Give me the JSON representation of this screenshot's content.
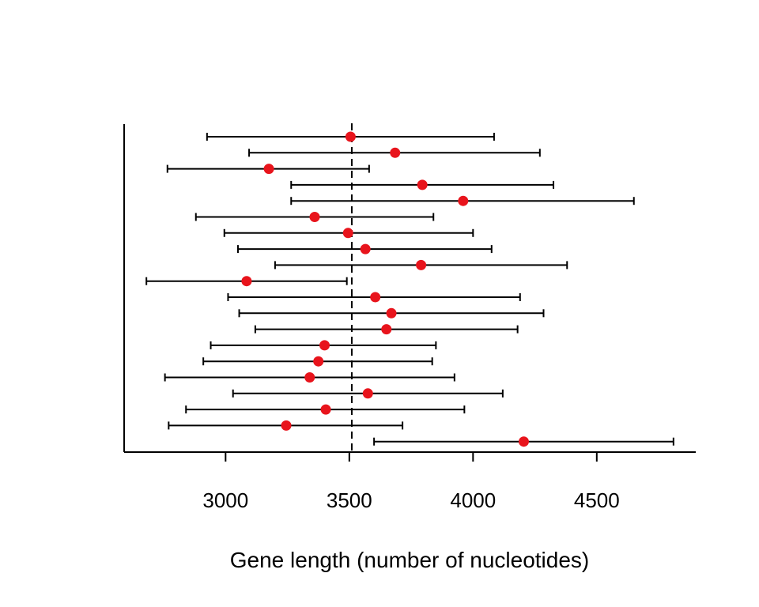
{
  "chart_data": {
    "type": "scatter",
    "title": "",
    "xlabel": "Gene length (number of nucleotides)",
    "ylabel": "",
    "xlim": [
      2590,
      4900
    ],
    "x_ticks": [
      3000,
      3500,
      4000,
      4500
    ],
    "x_tick_labels": [
      "3000",
      "3500",
      "4000",
      "4500"
    ],
    "reference_line": 3510,
    "grid": false,
    "legend": "none",
    "colors": {
      "point": "#e8141c",
      "errorbar": "#000000",
      "axis": "#000000"
    },
    "series": [
      {
        "points": [
          {
            "estimate": 3505,
            "lower": 2925,
            "upper": 4085
          },
          {
            "estimate": 3685,
            "lower": 3095,
            "upper": 4270
          },
          {
            "estimate": 3175,
            "lower": 2765,
            "upper": 3580
          },
          {
            "estimate": 3795,
            "lower": 3265,
            "upper": 4325
          },
          {
            "estimate": 3960,
            "lower": 3265,
            "upper": 4650
          },
          {
            "estimate": 3360,
            "lower": 2880,
            "upper": 3840
          },
          {
            "estimate": 3495,
            "lower": 2995,
            "upper": 4000
          },
          {
            "estimate": 3565,
            "lower": 3050,
            "upper": 4075
          },
          {
            "estimate": 3790,
            "lower": 3200,
            "upper": 4380
          },
          {
            "estimate": 3085,
            "lower": 2680,
            "upper": 3490
          },
          {
            "estimate": 3605,
            "lower": 3010,
            "upper": 4190
          },
          {
            "estimate": 3670,
            "lower": 3055,
            "upper": 4285
          },
          {
            "estimate": 3650,
            "lower": 3120,
            "upper": 4180
          },
          {
            "estimate": 3400,
            "lower": 2940,
            "upper": 3850
          },
          {
            "estimate": 3375,
            "lower": 2910,
            "upper": 3835
          },
          {
            "estimate": 3340,
            "lower": 2755,
            "upper": 3925
          },
          {
            "estimate": 3575,
            "lower": 3030,
            "upper": 4120
          },
          {
            "estimate": 3405,
            "lower": 2840,
            "upper": 3965
          },
          {
            "estimate": 3245,
            "lower": 2770,
            "upper": 3715
          },
          {
            "estimate": 4205,
            "lower": 3600,
            "upper": 4810
          }
        ]
      }
    ]
  }
}
